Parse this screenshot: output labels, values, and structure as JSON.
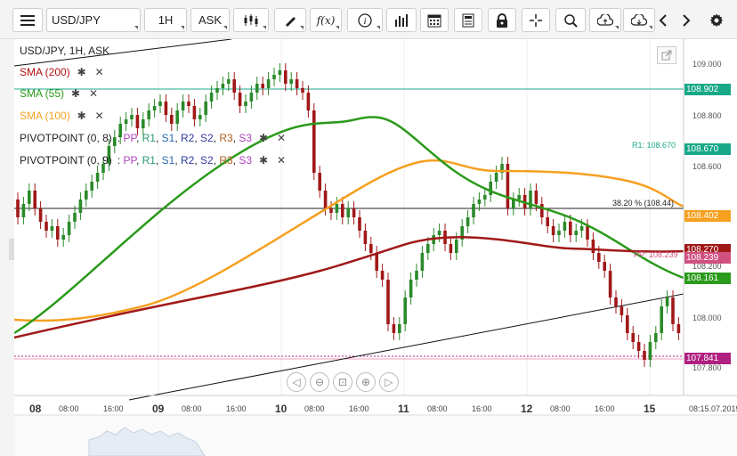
{
  "toolbar": {
    "symbol": "USD/JPY",
    "timeframe": "1H",
    "price_type": "ASK",
    "icons": [
      "menu-icon",
      "candles-icon",
      "draw-icon",
      "function-icon",
      "info-icon",
      "bars-icon",
      "calendar-icon",
      "news-icon",
      "lock-icon",
      "crosshair-icon",
      "zoom-icon",
      "upload-icon",
      "download-icon",
      "prev-icon",
      "next-icon",
      "settings-icon"
    ]
  },
  "chart": {
    "title": "USD/JPY, 1H, ASK",
    "legend": [
      {
        "label": "SMA (200)",
        "color": "#b01010"
      },
      {
        "label": "SMA (55)",
        "color": "#2a9a1a"
      },
      {
        "label": "SMA (100)",
        "color": "#f5a020"
      }
    ],
    "pivot_rows": [
      {
        "label": "PIVOTPOINT (0, 8)",
        "items": [
          "PP",
          "R1",
          "S1",
          "R2",
          "S2",
          "R3",
          "S3"
        ]
      },
      {
        "label": "PIVOTPOINT (0, 9)",
        "items": [
          "PP",
          "R1",
          "S1",
          "R2",
          "S2",
          "R3",
          "S3"
        ]
      }
    ],
    "annotations": {
      "r1": "R1: 108.670",
      "fib": "38.20 % (108.44)",
      "pp": "PP: 108.239"
    },
    "price_labels": [
      {
        "text": "108.902",
        "color": "#18a888"
      },
      {
        "text": "108.670",
        "color": "#18a888"
      },
      {
        "text": "108.402",
        "color": "#f5a020"
      },
      {
        "text": "108.270",
        "color": "#a01818"
      },
      {
        "text": "108.239",
        "color": "#d05080"
      },
      {
        "text": "108.161",
        "color": "#2a9a1a"
      },
      {
        "text": "107.841",
        "color": "#b02080"
      }
    ],
    "y_ticks": [
      "109.000",
      "108.800",
      "108.600",
      "108.200",
      "108.000",
      "107.800"
    ],
    "x_ticks": [
      {
        "label": "08",
        "day": true
      },
      {
        "label": "08:00"
      },
      {
        "label": "16:00"
      },
      {
        "label": "09",
        "day": true
      },
      {
        "label": "08:00"
      },
      {
        "label": "16:00"
      },
      {
        "label": "10",
        "day": true
      },
      {
        "label": "08:00"
      },
      {
        "label": "16:00"
      },
      {
        "label": "11",
        "day": true
      },
      {
        "label": "08:00"
      },
      {
        "label": "16:00"
      },
      {
        "label": "12",
        "day": true
      },
      {
        "label": "08:00"
      },
      {
        "label": "16:00"
      },
      {
        "label": "15",
        "day": true
      },
      {
        "label": "08:15.07.2019"
      }
    ]
  }
}
